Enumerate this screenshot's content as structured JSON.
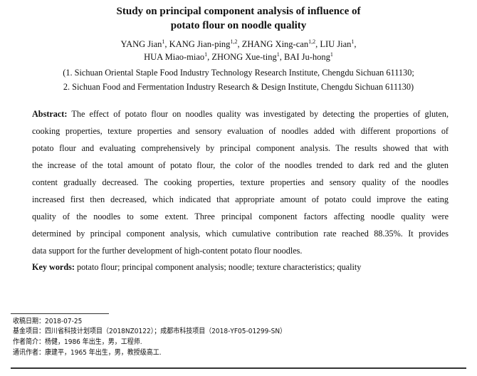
{
  "title": [
    "Study on principal component analysis of influence of",
    "potato flour on noodle quality"
  ],
  "authors_line1": [
    {
      "name": "YANG Jian",
      "sup": "1",
      "sep": ", "
    },
    {
      "name": "KANG Jian-ping",
      "sup": "1,2",
      "sep": ", "
    },
    {
      "name": "ZHANG Xing-can",
      "sup": "1,2",
      "sep": ", "
    },
    {
      "name": "LIU Jian",
      "sup": "1",
      "sep": ","
    }
  ],
  "authors_line2": [
    {
      "name": "HUA Miao-miao",
      "sup": "1",
      "sep": ", "
    },
    {
      "name": "ZHONG Xue-ting",
      "sup": "1",
      "sep": ", "
    },
    {
      "name": "BAI Ju-hong",
      "sup": "1",
      "sep": ""
    }
  ],
  "affiliations": [
    "(1. Sichuan Oriental Staple Food Industry Technology Research Institute, Chengdu Sichuan 611130;",
    "2. Sichuan Food and Fermentation Industry Research & Design Institute, Chengdu Sichuan 611130)"
  ],
  "abstract": {
    "label": "Abstract:",
    "lines": [
      "The effect of potato flour on noodles quality was investigated by detecting the properties of gluten,",
      "cooking properties, texture properties and sensory evaluation of noodles added with different proportions of",
      "potato flour and evaluating comprehensively by principal component analysis. The results showed that with",
      "the increase of the total amount of potato flour, the color of the noodles trended to dark red and the gluten",
      "content gradually decreased. The cooking properties, texture properties and sensory quality of the noodles",
      "increased first then decreased, which indicated that appropriate amount of potato could improve the eating",
      "quality of the noodles to some extent. Three principal component factors affecting noodle quality were",
      "determined by principal component analysis, which cumulative contribution rate reached 88.35%. It provides",
      "data support for the further development of high-content potato flour noodles."
    ]
  },
  "keywords": {
    "label": "Key words:",
    "text": "potato flour; principal component analysis; noodle; texture characteristics; quality"
  },
  "footnotes": [
    "收稿日期：2018-07-25",
    "基金项目：四川省科技计划项目（2018NZ0122）；成都市科技项目（2018-YF05-01299-SN）",
    "作者简介：杨健，1986 年出生，男，工程师.",
    "通讯作者：康建平，1965 年出生，男，教授级高工."
  ]
}
